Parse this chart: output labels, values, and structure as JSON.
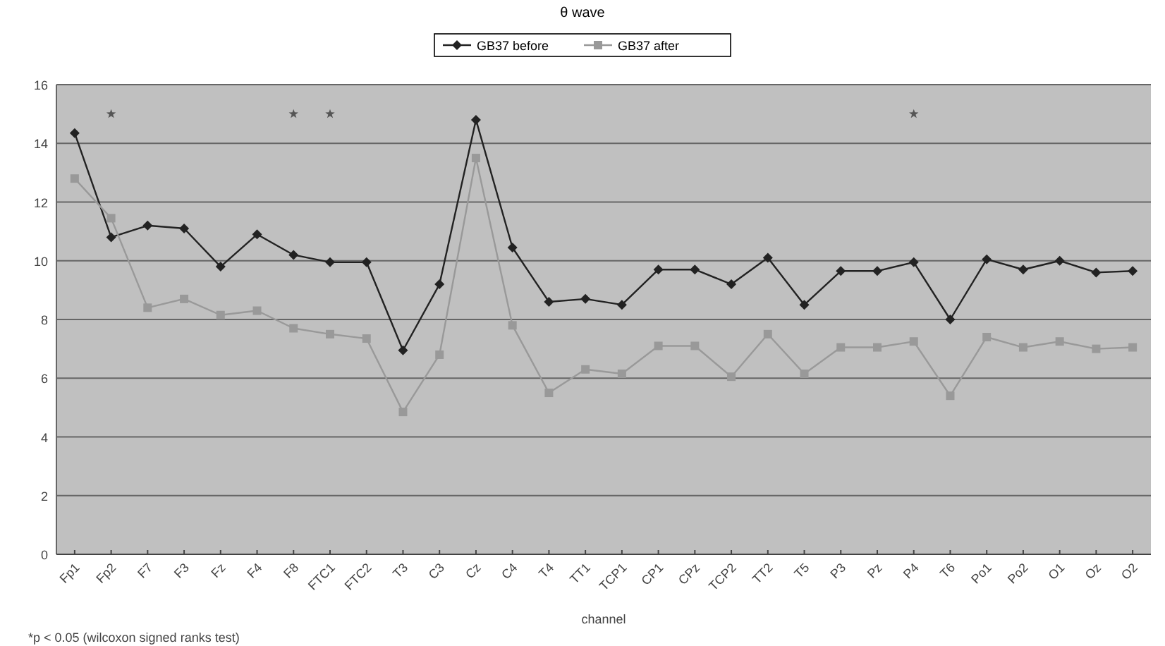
{
  "chart_data": {
    "type": "line",
    "title": "θ wave",
    "xlabel": "channel",
    "categories": [
      "Fp1",
      "Fp2",
      "F7",
      "F3",
      "Fz",
      "F4",
      "F8",
      "FTC1",
      "FTC2",
      "T3",
      "C3",
      "Cz",
      "C4",
      "T4",
      "TT1",
      "TCP1",
      "CP1",
      "CPz",
      "TCP2",
      "TT2",
      "T5",
      "P3",
      "Pz",
      "P4",
      "T6",
      "Po1",
      "Po2",
      "O1",
      "Oz",
      "O2"
    ],
    "series": [
      {
        "name": "GB37 before",
        "color": "#222222",
        "marker": "diamond",
        "values": [
          14.35,
          10.8,
          11.2,
          11.1,
          9.8,
          10.9,
          10.2,
          9.95,
          9.95,
          6.95,
          9.2,
          14.8,
          10.45,
          8.6,
          8.7,
          8.5,
          9.7,
          9.7,
          9.2,
          10.1,
          8.5,
          9.65,
          9.65,
          9.95,
          8.0,
          10.05,
          9.7,
          10.0,
          9.6,
          9.65
        ]
      },
      {
        "type": "scatter",
        "color": "#555555",
        "marker": "star",
        "values": [
          null,
          15,
          null,
          null,
          null,
          null,
          15,
          15,
          null,
          null,
          null,
          null,
          null,
          null,
          null,
          null,
          null,
          null,
          null,
          null,
          null,
          null,
          null,
          15,
          null,
          null,
          null,
          null,
          null,
          null
        ]
      },
      {
        "name": "GB37 after",
        "color": "#999999",
        "marker": "square",
        "values": [
          12.8,
          11.45,
          8.4,
          8.7,
          8.15,
          8.3,
          7.7,
          7.5,
          7.35,
          4.85,
          6.8,
          13.5,
          7.8,
          5.5,
          6.3,
          6.15,
          7.1,
          7.1,
          6.05,
          7.5,
          6.15,
          7.05,
          7.05,
          7.25,
          5.4,
          7.4,
          7.05,
          7.25,
          7.0,
          7.05
        ]
      }
    ],
    "ylim": [
      0,
      16
    ],
    "yticks": [
      0,
      2,
      4,
      6,
      8,
      10,
      12,
      14,
      16
    ],
    "grid": "y",
    "legend": "top",
    "annotations": [
      "*p < 0.05 (wilcoxon signed ranks test)"
    ]
  }
}
